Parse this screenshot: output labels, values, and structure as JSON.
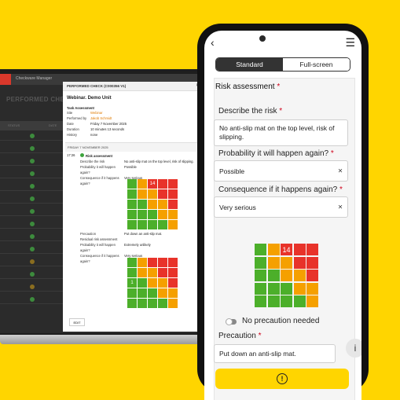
{
  "colors": {
    "background": "#FFD500",
    "green": "#4caf2a",
    "orange": "#f5a000",
    "red": "#e8332a",
    "yellow_button": "#FFD500"
  },
  "laptop": {
    "topbar_text": "Checkware Manager",
    "page_title": "PERFORMED CHE",
    "columns": [
      "STATUS",
      "DATE"
    ]
  },
  "doc": {
    "header": "PERFORMED CHECK (C000356 V1)",
    "name": "Webinar. Demo Unit",
    "task_section": "Task Assessment",
    "meta": [
      {
        "k": "Site",
        "v": "Webinar"
      },
      {
        "k": "Performed by",
        "v": "Jakob Schmidt"
      },
      {
        "k": "Date",
        "v": "Friday 7 November 2025"
      },
      {
        "k": "Duration",
        "v": "10 minutes 13 seconds"
      },
      {
        "k": "History",
        "v": "none"
      }
    ],
    "date_bar": "FRIDAY 7 NOVEMBER 2025",
    "entry_time": "17:26",
    "entry_title": "Risk assessment",
    "rows": [
      {
        "k": "Describe the risk",
        "v": "No anti-slip mat on the top level, risk of slipping."
      },
      {
        "k": "Probability it will happen again?",
        "v": "Possible"
      },
      {
        "k": "Consequence if it happens again?",
        "v": "Very serious"
      }
    ],
    "matrix1_value": "14",
    "rows2": [
      {
        "k": "Precaution",
        "v": "Put down an anti-slip mat."
      },
      {
        "k": "Residual risk assessment",
        "v": ""
      },
      {
        "k": "Probability it will happen again?",
        "v": "Extremely unlikely"
      },
      {
        "k": "Consequence if it happens again?",
        "v": "Very serious"
      }
    ],
    "matrix2_value": "1",
    "edit_label": "EDIT"
  },
  "phone": {
    "tabs": [
      "Standard",
      "Full-screen"
    ],
    "section_title": "Risk assessment",
    "required_mark": "*",
    "describe_label": "Describe the risk",
    "describe_value": "No anti-slip mat on the top level, risk of slipping.",
    "probability_label": "Probability it will happen again?",
    "probability_value": "Possible",
    "consequence_label": "Consequence if it happens again?",
    "consequence_value": "Very serious",
    "matrix_value": "14",
    "toggle_label": "No precaution needed",
    "precaution_label": "Precaution",
    "precaution_value": "Put down an anti-slip mat.",
    "info_icon": "i",
    "alert_icon": "!"
  },
  "matrix": {
    "colors": [
      [
        "green",
        "orange",
        "red",
        "red",
        "red"
      ],
      [
        "green",
        "orange",
        "orange",
        "red",
        "red"
      ],
      [
        "green",
        "green",
        "orange",
        "orange",
        "red"
      ],
      [
        "green",
        "green",
        "green",
        "orange",
        "orange"
      ],
      [
        "green",
        "green",
        "green",
        "green",
        "orange"
      ]
    ],
    "highlight_row": 0,
    "highlight_col": 2,
    "mini2_highlight_row": 2,
    "mini2_highlight_col": 0
  }
}
